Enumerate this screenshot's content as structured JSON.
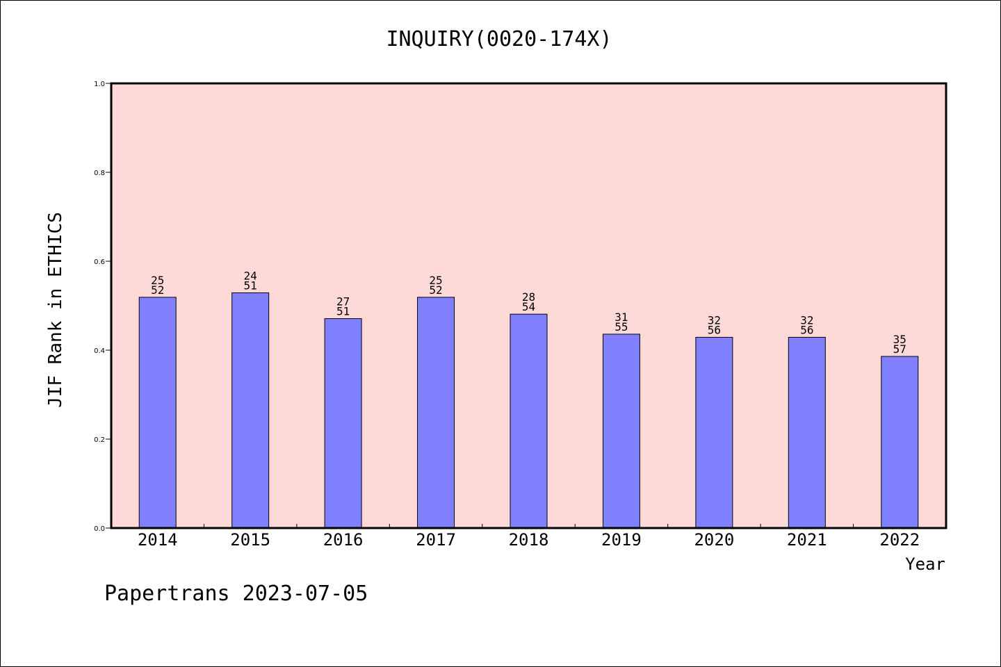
{
  "chart_data": {
    "type": "bar",
    "title": "INQUIRY(0020-174X)",
    "xlabel": "Year",
    "ylabel": "JIF Rank in ETHICS",
    "ylim": [
      0,
      1.0
    ],
    "yticks": [
      "0.0",
      "0.2",
      "0.4",
      "0.6",
      "0.8",
      "1.0"
    ],
    "categories": [
      "2014",
      "2015",
      "2016",
      "2017",
      "2018",
      "2019",
      "2020",
      "2021",
      "2022"
    ],
    "values": [
      0.519,
      0.529,
      0.471,
      0.519,
      0.481,
      0.436,
      0.429,
      0.429,
      0.386
    ],
    "rank_labels": [
      {
        "rank": "25",
        "total": "52"
      },
      {
        "rank": "24",
        "total": "51"
      },
      {
        "rank": "27",
        "total": "51"
      },
      {
        "rank": "25",
        "total": "52"
      },
      {
        "rank": "28",
        "total": "54"
      },
      {
        "rank": "31",
        "total": "55"
      },
      {
        "rank": "32",
        "total": "56"
      },
      {
        "rank": "32",
        "total": "56"
      },
      {
        "rank": "35",
        "total": "57"
      }
    ],
    "grid": false,
    "colors": {
      "plot_background": "#fddad7",
      "bar_fill": "#8080ff",
      "bar_stroke": "#000000"
    }
  },
  "footer": "Papertrans 2023-07-05"
}
